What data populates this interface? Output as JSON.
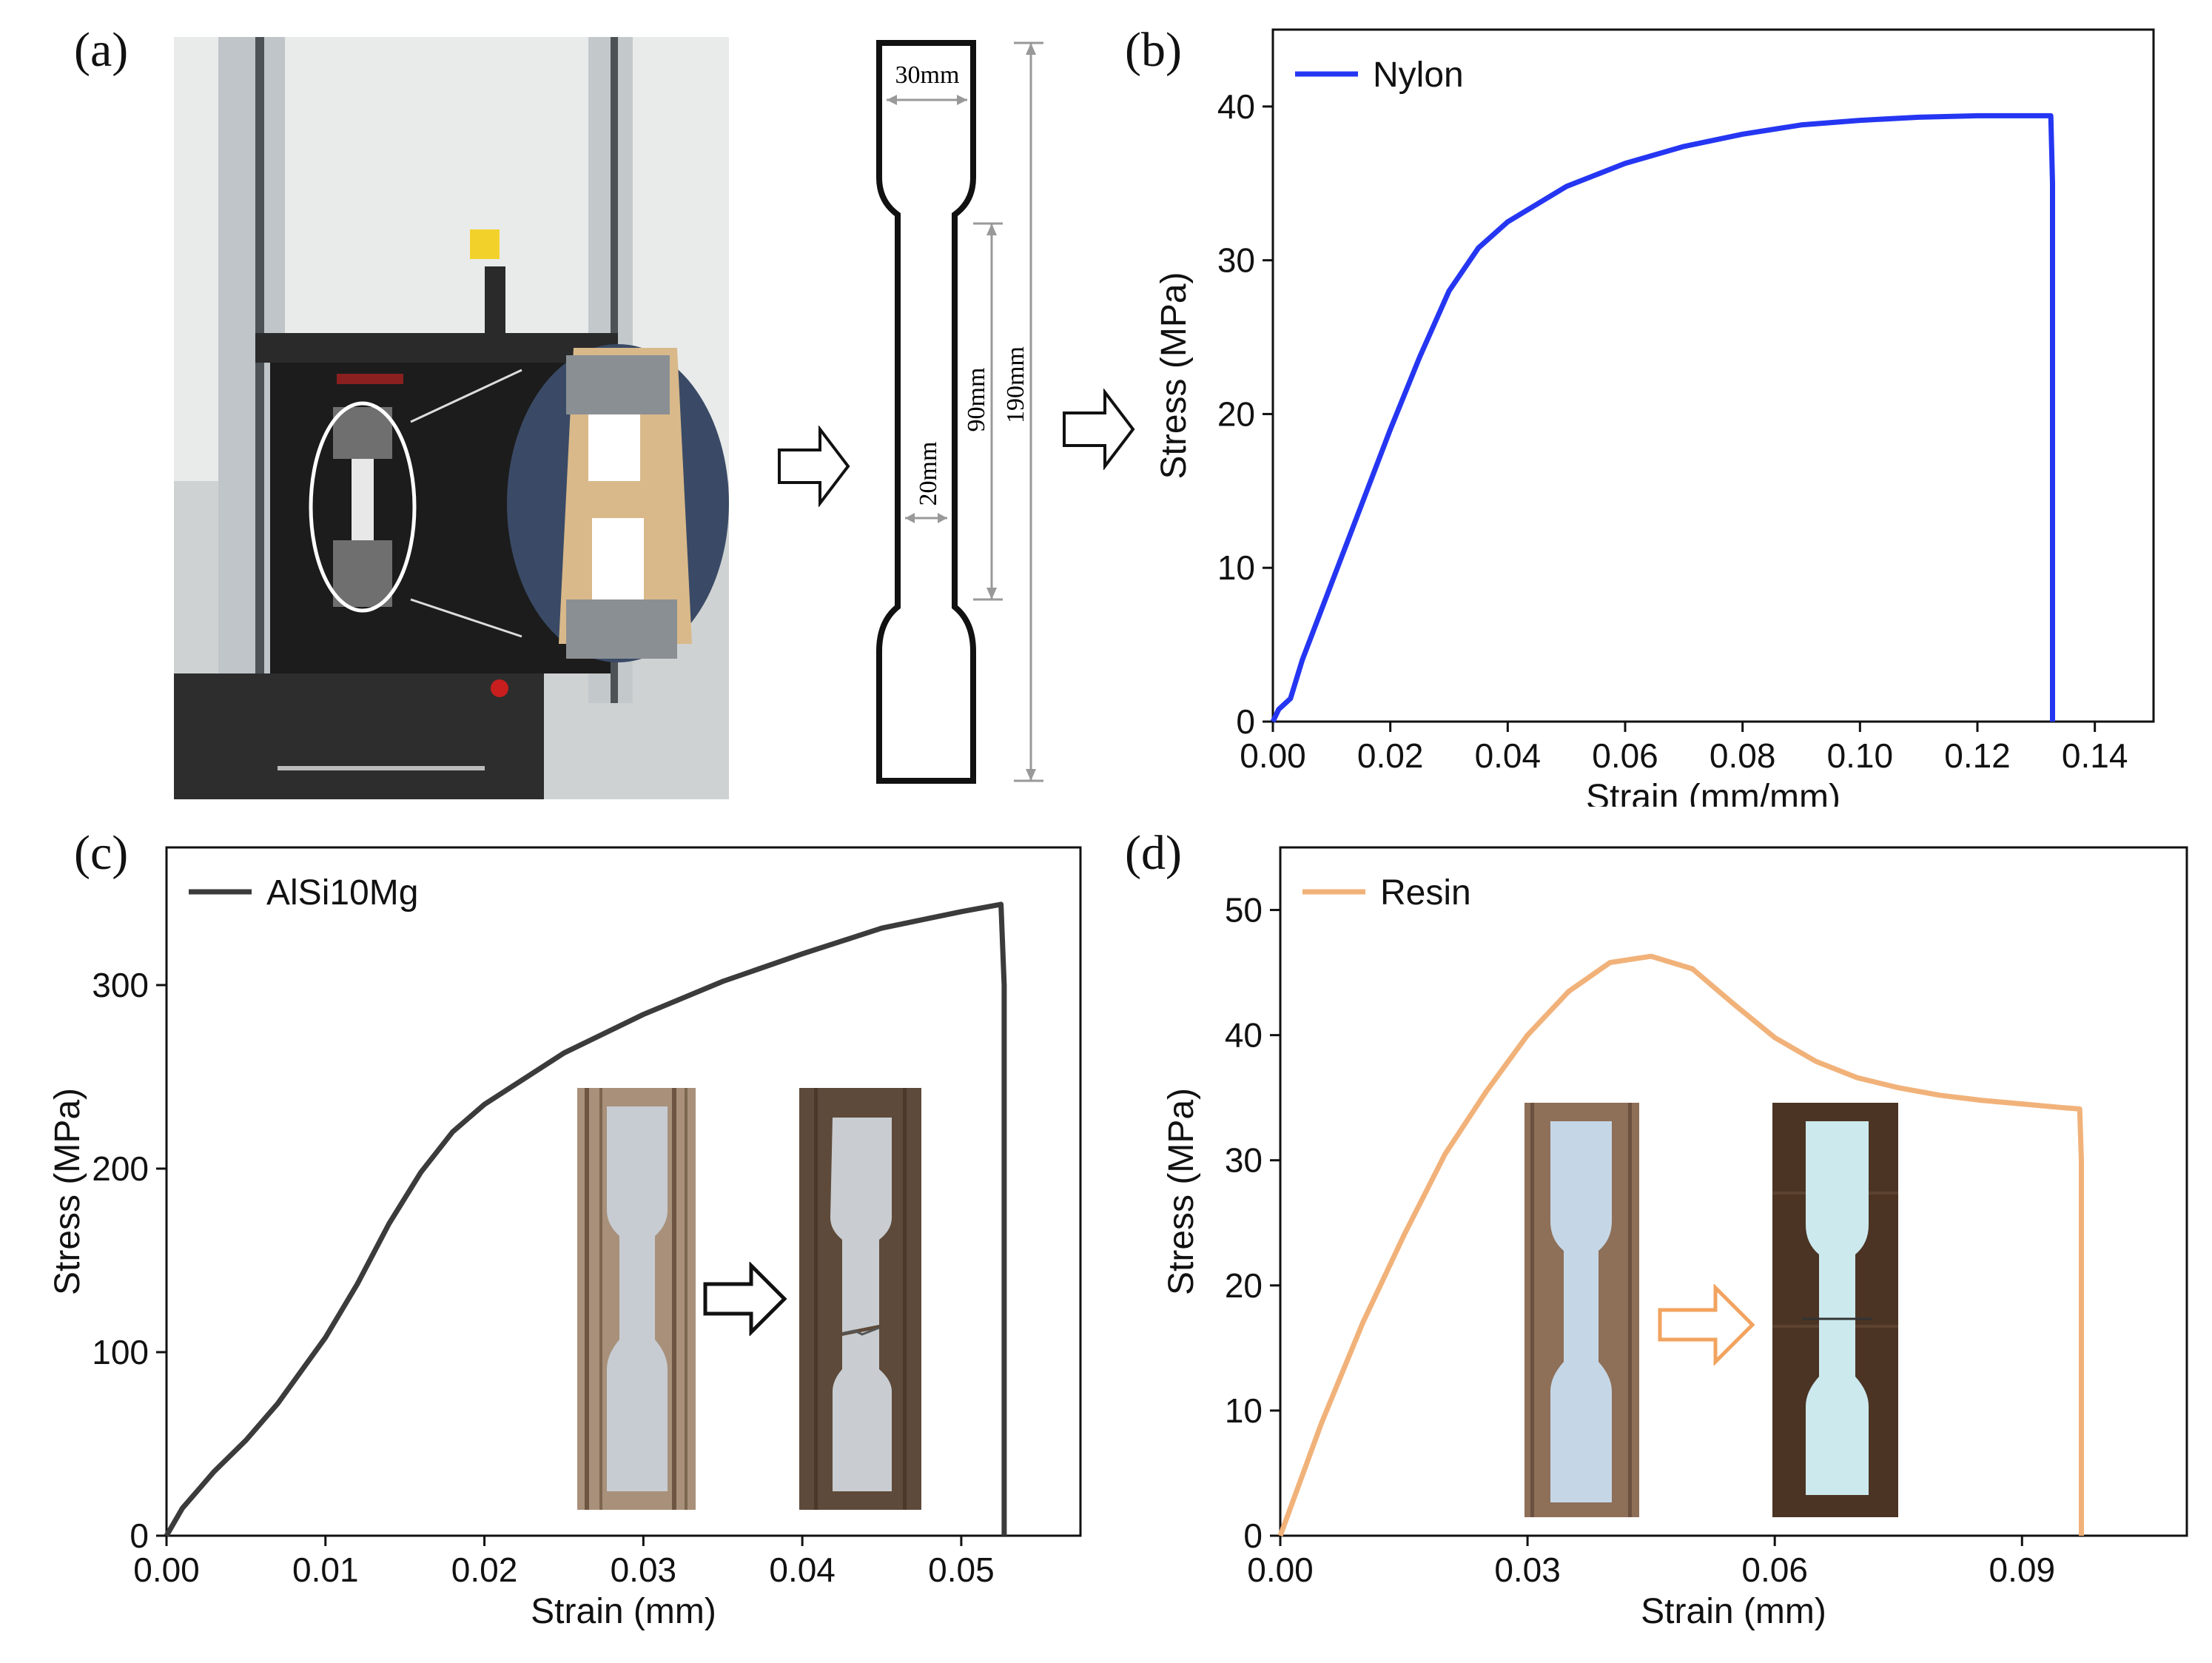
{
  "panels": {
    "a": {
      "label": "(a)",
      "specimen_dims": {
        "grip_width": "30mm",
        "gauge_width": "20mm",
        "gauge_length": "90mm",
        "total_length": "190mm"
      }
    },
    "b": {
      "label": "(b)"
    },
    "c": {
      "label": "(c)"
    },
    "d": {
      "label": "(d)"
    }
  },
  "colors": {
    "nylon": "#2536f2",
    "alsi10mg": "#3b3b3b",
    "resin": "#f1b27a",
    "axis": "#111111",
    "arrow_orange": "#f2a360"
  },
  "chart_data": [
    {
      "id": "b",
      "type": "line",
      "xlabel": "Strain (mm/mm)",
      "ylabel": "Stress (MPa)",
      "xlim": [
        0,
        0.15
      ],
      "ylim": [
        0,
        45
      ],
      "xticks": [
        0,
        0.02,
        0.04,
        0.06,
        0.08,
        0.1,
        0.12,
        0.14
      ],
      "xtick_labels": [
        "0.00",
        "0.02",
        "0.04",
        "0.06",
        "0.08",
        "0.10",
        "0.12",
        "0.14"
      ],
      "yticks": [
        0,
        10,
        20,
        30,
        40
      ],
      "ytick_labels": [
        "0",
        "10",
        "20",
        "30",
        "40"
      ],
      "legend": "top-left",
      "grid": false,
      "series": [
        {
          "name": "Nylon",
          "color": "#2536f2",
          "x": [
            0,
            0.001,
            0.003,
            0.005,
            0.01,
            0.015,
            0.02,
            0.025,
            0.03,
            0.035,
            0.04,
            0.05,
            0.06,
            0.07,
            0.08,
            0.09,
            0.1,
            0.11,
            0.12,
            0.1325,
            0.1328,
            0.1328
          ],
          "y": [
            0,
            0.8,
            1.5,
            4,
            9,
            14,
            19,
            23.7,
            28,
            30.8,
            32.5,
            34.8,
            36.3,
            37.4,
            38.2,
            38.8,
            39.1,
            39.3,
            39.4,
            39.4,
            35,
            0
          ]
        }
      ]
    },
    {
      "id": "c",
      "type": "line",
      "xlabel": "Strain (mm)",
      "ylabel": "Stress (MPa)",
      "xlim": [
        0,
        0.0575
      ],
      "ylim": [
        0,
        375
      ],
      "xticks": [
        0,
        0.01,
        0.02,
        0.03,
        0.04,
        0.05
      ],
      "xtick_labels": [
        "0.00",
        "0.01",
        "0.02",
        "0.03",
        "0.04",
        "0.05"
      ],
      "yticks": [
        0,
        100,
        200,
        300
      ],
      "ytick_labels": [
        "0",
        "100",
        "200",
        "300"
      ],
      "legend": "top-left",
      "grid": false,
      "series": [
        {
          "name": "AlSi10Mg",
          "color": "#3b3b3b",
          "x": [
            0,
            0.001,
            0.002,
            0.003,
            0.005,
            0.007,
            0.01,
            0.012,
            0.014,
            0.016,
            0.018,
            0.02,
            0.025,
            0.03,
            0.035,
            0.04,
            0.045,
            0.05,
            0.0525,
            0.0527,
            0.0527
          ],
          "y": [
            0,
            15,
            25,
            35,
            52,
            72,
            108,
            137,
            170,
            198,
            220,
            235,
            263,
            284,
            302,
            317,
            331,
            340,
            344,
            300,
            0
          ]
        }
      ]
    },
    {
      "id": "d",
      "type": "line",
      "xlabel": "Strain (mm)",
      "ylabel": "Stress (MPa)",
      "xlim": [
        0,
        0.11
      ],
      "ylim": [
        0,
        55
      ],
      "xticks": [
        0,
        0.03,
        0.06,
        0.09
      ],
      "xtick_labels": [
        "0.00",
        "0.03",
        "0.06",
        "0.09"
      ],
      "yticks": [
        0,
        10,
        20,
        30,
        40,
        50
      ],
      "ytick_labels": [
        "0",
        "10",
        "20",
        "30",
        "40",
        "50"
      ],
      "legend": "top-left",
      "grid": false,
      "series": [
        {
          "name": "Resin",
          "color": "#f1b27a",
          "x": [
            0,
            0.005,
            0.01,
            0.015,
            0.02,
            0.025,
            0.03,
            0.035,
            0.04,
            0.045,
            0.05,
            0.055,
            0.06,
            0.065,
            0.07,
            0.075,
            0.08,
            0.085,
            0.09,
            0.095,
            0.097,
            0.0972,
            0.0972
          ],
          "y": [
            0,
            9,
            17,
            24,
            30.5,
            35.5,
            40,
            43.5,
            45.8,
            46.3,
            45.3,
            42.5,
            39.8,
            37.9,
            36.6,
            35.8,
            35.2,
            34.8,
            34.5,
            34.2,
            34.1,
            30,
            0
          ]
        }
      ]
    }
  ]
}
